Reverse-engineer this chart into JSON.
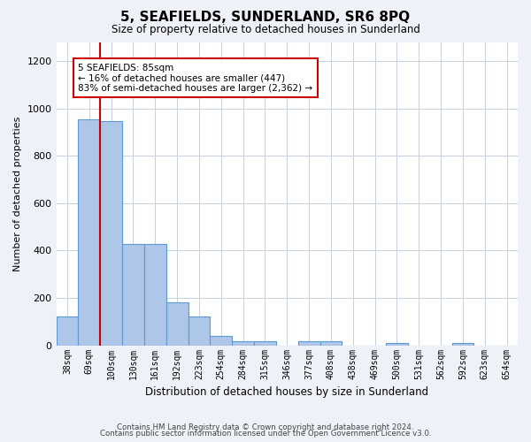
{
  "title": "5, SEAFIELDS, SUNDERLAND, SR6 8PQ",
  "subtitle": "Size of property relative to detached houses in Sunderland",
  "xlabel": "Distribution of detached houses by size in Sunderland",
  "ylabel": "Number of detached properties",
  "categories": [
    "38sqm",
    "69sqm",
    "100sqm",
    "130sqm",
    "161sqm",
    "192sqm",
    "223sqm",
    "254sqm",
    "284sqm",
    "315sqm",
    "346sqm",
    "377sqm",
    "408sqm",
    "438sqm",
    "469sqm",
    "500sqm",
    "531sqm",
    "562sqm",
    "592sqm",
    "623sqm",
    "654sqm"
  ],
  "values": [
    120,
    955,
    948,
    428,
    428,
    183,
    120,
    40,
    18,
    18,
    0,
    18,
    18,
    0,
    0,
    8,
    0,
    0,
    8,
    0,
    0
  ],
  "bar_color": "#aec6e8",
  "bar_edge_color": "#5b9bd5",
  "vline_x_idx": 1,
  "vline_color": "#cc0000",
  "annotation_text": "5 SEAFIELDS: 85sqm\n← 16% of detached houses are smaller (447)\n83% of semi-detached houses are larger (2,362) →",
  "annotation_box_color": "#ffffff",
  "annotation_box_edge_color": "#cc0000",
  "ylim": [
    0,
    1280
  ],
  "yticks": [
    0,
    200,
    400,
    600,
    800,
    1000,
    1200
  ],
  "footer_line1": "Contains HM Land Registry data © Crown copyright and database right 2024.",
  "footer_line2": "Contains public sector information licensed under the Open Government Licence v3.0.",
  "background_color": "#eef2f8",
  "plot_bg_color": "#ffffff",
  "grid_color": "#c8d0de"
}
